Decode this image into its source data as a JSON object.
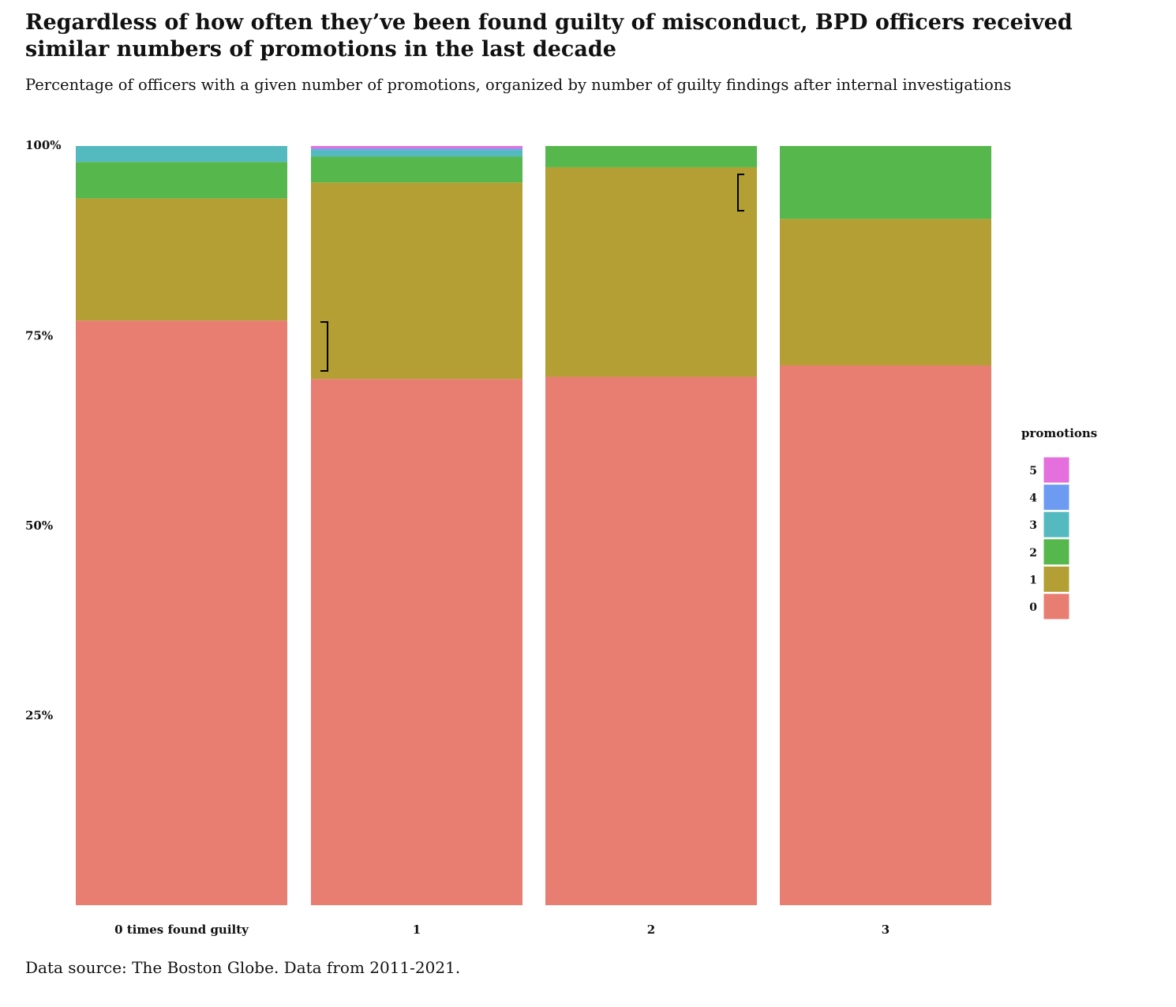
{
  "chart_data": {
    "type": "bar",
    "stacked": "percent",
    "title": "Regardless of how often they’ve been found guilty of misconduct, BPD officers received similar numbers of promotions in the last decade",
    "subtitle": "Percentage of officers with a given number of promotions, organized by number of guilty findings after internal investigations",
    "caption": "Data source: The Boston Globe. Data from 2011-2021.",
    "categories": [
      "0 times found guilty",
      "1",
      "2",
      "3"
    ],
    "yticks": [
      {
        "value": 25,
        "label": "25%"
      },
      {
        "value": 50,
        "label": "50%"
      },
      {
        "value": 75,
        "label": "75%"
      },
      {
        "value": 100,
        "label": "100%"
      }
    ],
    "ylim": [
      0,
      100
    ],
    "legend": {
      "title": "promotions",
      "position": "right"
    },
    "series": [
      {
        "name": "0",
        "color": "#E87D72",
        "values": [
          77.0,
          69.3,
          69.6,
          71.1
        ]
      },
      {
        "name": "1",
        "color": "#B39F33",
        "values": [
          16.1,
          25.9,
          27.6,
          19.3
        ]
      },
      {
        "name": "2",
        "color": "#55B74C",
        "values": [
          4.8,
          3.4,
          2.8,
          9.6
        ]
      },
      {
        "name": "3",
        "color": "#55BAC0",
        "values": [
          2.1,
          0.9,
          0,
          0
        ]
      },
      {
        "name": "4",
        "color": "#6D9BF1",
        "values": [
          0,
          0.2,
          0,
          0
        ]
      },
      {
        "name": "5",
        "color": "#E56FDC",
        "values": [
          0,
          0.3,
          0,
          0
        ]
      }
    ]
  }
}
